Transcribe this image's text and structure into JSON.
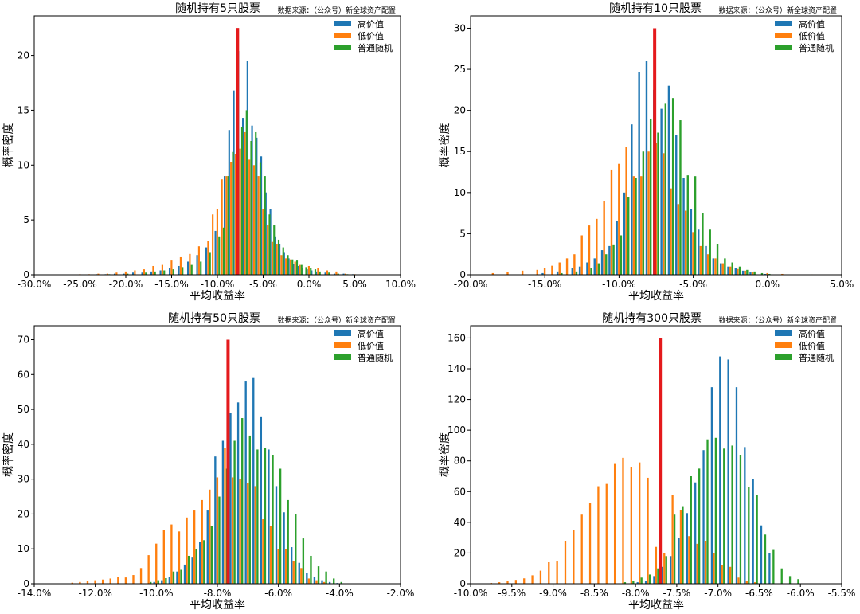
{
  "colors": {
    "high_value": "#1f77b4",
    "low_value": "#ff7f0e",
    "random": "#2ca02c",
    "marker": "#e41a1c"
  },
  "chart_data": [
    {
      "type": "bar",
      "title": "随机持有5只股票",
      "subtitle": "数据来源：（公众号）新全球资产配置",
      "xlabel": "平均收益率",
      "ylabel": "概率密度",
      "xlim": [
        -30,
        10
      ],
      "ylim": [
        0,
        23.6
      ],
      "x_ticks": [
        -30,
        -25,
        -20,
        -15,
        -10,
        -5,
        0,
        5,
        10
      ],
      "x_tick_labels": [
        "-30.0%",
        "-25.0%",
        "-20.0%",
        "-15.0%",
        "-10.0%",
        "-5.0%",
        "0.0%",
        "5.0%",
        "10.0%"
      ],
      "y_ticks": [
        0,
        5,
        10,
        15,
        20
      ],
      "legend": "top-right",
      "marker_x": -7.8,
      "marker_height": 22.5,
      "bin_width": 0.61,
      "series": [
        {
          "name": "高价值",
          "centers": [
            -23,
            -22,
            -21,
            -20,
            -19,
            -18,
            -17,
            -16,
            -15,
            -14,
            -13,
            -12,
            -11,
            -10,
            -9,
            -8.5,
            -8,
            -7.5,
            -7,
            -6.5,
            -6,
            -5.5,
            -5,
            -4.5,
            -4,
            -3.5,
            -3,
            -2.5,
            -2,
            -1.5,
            -1,
            -0.5,
            0,
            0.5,
            1,
            2,
            3,
            4,
            5
          ],
          "values": [
            0.05,
            0.05,
            0.1,
            0.1,
            0.2,
            0.2,
            0.3,
            0.4,
            0.6,
            0.8,
            1.2,
            1.8,
            2.5,
            4.0,
            9.0,
            13.2,
            16.8,
            20.4,
            14.3,
            19.5,
            13.6,
            12.5,
            10.8,
            7.5,
            6.0,
            3.5,
            2.8,
            2.0,
            1.5,
            1.0,
            0.8,
            0.6,
            0.5,
            0.4,
            0.3,
            0.2,
            0.1,
            0.1,
            0.05
          ]
        },
        {
          "name": "低价值",
          "centers": [
            -25,
            -24,
            -23,
            -22,
            -21,
            -20,
            -19,
            -18,
            -17,
            -16,
            -15,
            -14,
            -13,
            -12,
            -11,
            -10.5,
            -10,
            -9.5,
            -9,
            -8.5,
            -8,
            -7.5,
            -7,
            -6.5,
            -6,
            -5.5,
            -5,
            -4.5,
            -4,
            -3.5,
            -3,
            -2.5,
            -2,
            -1.5,
            -1,
            0,
            1,
            2,
            3,
            4,
            5
          ],
          "values": [
            0.05,
            0.05,
            0.1,
            0.1,
            0.2,
            0.3,
            0.4,
            0.5,
            0.8,
            0.9,
            1.3,
            1.6,
            1.9,
            2.6,
            3.1,
            5.5,
            6.0,
            8.7,
            9.0,
            10.3,
            11.0,
            11.5,
            13.0,
            10.5,
            10.0,
            9.0,
            6.0,
            4.5,
            3.0,
            2.8,
            1.8,
            1.5,
            1.4,
            1.2,
            0.9,
            0.8,
            0.6,
            0.4,
            0.3,
            0.1,
            0.05
          ]
        },
        {
          "name": "普通随机",
          "centers": [
            -22,
            -20,
            -18,
            -17,
            -16,
            -15,
            -14,
            -13,
            -12,
            -11,
            -10,
            -9.5,
            -9,
            -8.5,
            -8,
            -7.5,
            -7,
            -6.5,
            -6,
            -5.5,
            -5,
            -4.5,
            -4,
            -3.5,
            -3,
            -2.5,
            -2,
            -1.5,
            -1,
            -0.5,
            0,
            0.5,
            1,
            2,
            3,
            4
          ],
          "values": [
            0.05,
            0.1,
            0.2,
            0.3,
            0.4,
            0.5,
            0.7,
            0.9,
            1.2,
            2.0,
            3.5,
            4.3,
            9.0,
            11.2,
            12.2,
            13.5,
            15.0,
            12.2,
            13.0,
            10.2,
            9.0,
            5.5,
            4.5,
            3.2,
            2.5,
            1.8,
            1.4,
            1.3,
            0.9,
            0.7,
            0.6,
            0.5,
            0.3,
            0.2,
            0.1,
            0.05
          ]
        }
      ]
    },
    {
      "type": "bar",
      "title": "随机持有10只股票",
      "subtitle": "数据来源：（公众号）新全球资产配置",
      "xlabel": "平均收益率",
      "ylabel": "概率密度",
      "xlim": [
        -20,
        5
      ],
      "ylim": [
        0,
        31.5
      ],
      "x_ticks": [
        -20,
        -15,
        -10,
        -5,
        0,
        5
      ],
      "x_tick_labels": [
        "-20.0%",
        "-15.0%",
        "-10.0%",
        "-5.0%",
        "0.0%",
        "5.0%"
      ],
      "y_ticks": [
        0,
        5,
        10,
        15,
        20,
        25,
        30
      ],
      "legend": "top-right",
      "marker_x": -7.6,
      "marker_height": 30,
      "bin_width": 0.42,
      "series": [
        {
          "name": "高价值",
          "centers": [
            -15,
            -14,
            -13,
            -12.5,
            -12,
            -11.5,
            -11,
            -10.5,
            -10,
            -9.5,
            -9,
            -8.5,
            -8,
            -7.5,
            -7,
            -6.5,
            -6,
            -5.5,
            -5,
            -4.5,
            -4,
            -3.5,
            -3,
            -2.5,
            -2,
            -1.5,
            -1,
            0
          ],
          "values": [
            0.2,
            0.4,
            0.8,
            1.0,
            1.5,
            2.0,
            3.0,
            3.5,
            6.5,
            10.0,
            18.3,
            24.7,
            26.0,
            22.5,
            20.2,
            23.0,
            17.0,
            11.8,
            8.0,
            5.5,
            3.5,
            2.0,
            1.4,
            1.0,
            0.8,
            0.5,
            0.3,
            0.1
          ]
        },
        {
          "name": "低价值",
          "centers": [
            -18.5,
            -17.5,
            -16.5,
            -15.5,
            -15,
            -14.5,
            -14,
            -13.5,
            -13,
            -12.5,
            -12,
            -11.5,
            -11,
            -10.5,
            -10,
            -9.5,
            -9,
            -8.5,
            -8,
            -7.5,
            -7,
            -6.5,
            -6,
            -5.5,
            -5,
            -4.5,
            -4,
            -3.5,
            -3,
            -2.5,
            -2,
            -1.5,
            -1,
            0,
            1,
            3
          ],
          "values": [
            0.2,
            0.3,
            0.5,
            0.6,
            0.8,
            1.1,
            1.5,
            2.0,
            2.5,
            4.8,
            6.0,
            6.8,
            9.0,
            12.8,
            13.5,
            15.6,
            12.0,
            12.0,
            15.0,
            16.0,
            14.8,
            10.5,
            8.6,
            7.8,
            5.2,
            3.5,
            2.5,
            2.0,
            1.4,
            1.0,
            0.7,
            0.5,
            0.3,
            0.2,
            0.1,
            0.05
          ]
        },
        {
          "name": "普通随机",
          "centers": [
            -14,
            -13,
            -12,
            -11.5,
            -11,
            -10.5,
            -10,
            -9.5,
            -9,
            -8.5,
            -8,
            -7.5,
            -7,
            -6.5,
            -6,
            -5.5,
            -5,
            -4.5,
            -4,
            -3.5,
            -3,
            -2.5,
            -2,
            -1.5,
            -1,
            -0.5,
            0
          ],
          "values": [
            0.2,
            0.4,
            0.8,
            1.4,
            2.5,
            3.6,
            4.8,
            9.4,
            11.8,
            15.0,
            19.0,
            17.3,
            20.9,
            21.5,
            18.8,
            12.1,
            12.0,
            7.5,
            5.5,
            3.7,
            2.0,
            1.5,
            1.0,
            0.6,
            0.4,
            0.2,
            0.1
          ]
        }
      ]
    },
    {
      "type": "bar",
      "title": "随机持有50只股票",
      "subtitle": "数据来源：（公众号）新全球资产配置",
      "xlabel": "平均收益率",
      "ylabel": "概率密度",
      "xlim": [
        -14,
        -2
      ],
      "ylim": [
        0,
        74
      ],
      "x_ticks": [
        -14,
        -12,
        -10,
        -8,
        -6,
        -4,
        -2
      ],
      "x_tick_labels": [
        "-14.0%",
        "-12.0%",
        "-10.0%",
        "-8.0%",
        "-6.0%",
        "-4.0%",
        "-2.0%"
      ],
      "y_ticks": [
        0,
        10,
        20,
        30,
        40,
        50,
        60,
        70
      ],
      "legend": "top-right",
      "marker_x": -7.65,
      "marker_height": 70,
      "bin_width": 0.2,
      "series": [
        {
          "name": "高价值",
          "centers": [
            -10,
            -9.75,
            -9.5,
            -9.25,
            -9,
            -8.75,
            -8.5,
            -8.25,
            -8,
            -7.75,
            -7.5,
            -7.25,
            -7,
            -6.75,
            -6.5,
            -6.25,
            -6,
            -5.75,
            -5.5,
            -5.25,
            -5,
            -4.75,
            -4.5,
            -4.25,
            -4
          ],
          "values": [
            0.5,
            1.0,
            2.0,
            3.5,
            5.5,
            7.5,
            12.0,
            21.0,
            36.5,
            41.0,
            49.0,
            52.0,
            58.0,
            59.0,
            48.0,
            38.5,
            28.0,
            20.5,
            10.5,
            6.0,
            3.0,
            2.0,
            1.0,
            0.5,
            0.2
          ]
        },
        {
          "name": "低价值",
          "centers": [
            -12.75,
            -12.5,
            -12.25,
            -12,
            -11.75,
            -11.5,
            -11.25,
            -11,
            -10.75,
            -10.5,
            -10.25,
            -10,
            -9.75,
            -9.5,
            -9.25,
            -9,
            -8.75,
            -8.5,
            -8.25,
            -8,
            -7.75,
            -7.5,
            -7.25,
            -7,
            -6.75,
            -6.5,
            -6.25,
            -6,
            -5.75,
            -5.5,
            -5.25,
            -5,
            -4.75,
            -4.5
          ],
          "values": [
            0.3,
            0.5,
            0.8,
            1.0,
            1.2,
            1.5,
            2.0,
            1.8,
            2.5,
            4.5,
            8.2,
            11.5,
            15.5,
            17.0,
            15.0,
            19.0,
            21.0,
            24.0,
            27.0,
            30.5,
            39.0,
            30.5,
            30.0,
            29.0,
            28.0,
            18.5,
            16.5,
            10.0,
            10.0,
            6.5,
            4.5,
            1.5,
            1.0,
            0.5
          ]
        },
        {
          "name": "普通随机",
          "centers": [
            -10.25,
            -10,
            -9.75,
            -9.5,
            -9.25,
            -9,
            -8.75,
            -8.5,
            -8.25,
            -8,
            -7.75,
            -7.5,
            -7.25,
            -7,
            -6.75,
            -6.5,
            -6.25,
            -6,
            -5.75,
            -5.5,
            -5.25,
            -5,
            -4.75,
            -4.5,
            -4.25,
            -4
          ],
          "values": [
            0.5,
            1.0,
            1.6,
            3.5,
            4.0,
            8.0,
            10.0,
            12.5,
            16.5,
            25.0,
            33.0,
            41.0,
            47.5,
            42.5,
            38.5,
            39.0,
            37.0,
            33.0,
            24.0,
            20.0,
            13.0,
            8.0,
            5.0,
            3.5,
            1.5,
            0.5
          ]
        }
      ]
    },
    {
      "type": "bar",
      "title": "随机持有300只股票",
      "subtitle": "数据来源：（公众号）新全球资产配置",
      "xlabel": "平均收益率",
      "ylabel": "概率密度",
      "xlim": [
        -10,
        -5.5
      ],
      "ylim": [
        0,
        168
      ],
      "x_ticks": [
        -10,
        -9.5,
        -9,
        -8.5,
        -8,
        -7.5,
        -7,
        -6.5,
        -6,
        -5.5
      ],
      "x_tick_labels": [
        "-10.0%",
        "-9.5%",
        "-9.0%",
        "-8.5%",
        "-8.0%",
        "-7.5%",
        "-7.0%",
        "-6.5%",
        "-6.0%",
        "-5.5%"
      ],
      "y_ticks": [
        0,
        20,
        40,
        60,
        80,
        100,
        120,
        140,
        160
      ],
      "legend": "top-right",
      "marker_x": -7.7,
      "marker_height": 160,
      "bin_width": 0.072,
      "series": [
        {
          "name": "高价值",
          "centers": [
            -7.95,
            -7.85,
            -7.75,
            -7.65,
            -7.55,
            -7.45,
            -7.35,
            -7.25,
            -7.15,
            -7.05,
            -6.95,
            -6.85,
            -6.75,
            -6.65,
            -6.55,
            -6.45,
            -6.35
          ],
          "values": [
            1.0,
            2.0,
            5.0,
            11.0,
            18.0,
            30.0,
            46.0,
            66.0,
            87.0,
            128.0,
            148.0,
            146.0,
            128.0,
            89.0,
            68.0,
            38.0,
            20.0
          ]
        },
        {
          "name": "低价值",
          "centers": [
            -9.75,
            -9.65,
            -9.55,
            -9.45,
            -9.35,
            -9.25,
            -9.15,
            -9.05,
            -8.95,
            -8.85,
            -8.75,
            -8.65,
            -8.55,
            -8.45,
            -8.35,
            -8.25,
            -8.15,
            -8.05,
            -7.95,
            -7.85,
            -7.75,
            -7.65,
            -7.55,
            -7.45,
            -7.35,
            -7.25,
            -7.15,
            -7.05,
            -6.95,
            -6.85,
            -6.75,
            -6.65,
            -6.55
          ],
          "values": [
            0.5,
            1.0,
            2.0,
            2.5,
            3.5,
            5.5,
            8.5,
            14.0,
            14.5,
            28.0,
            35.0,
            45.0,
            52.5,
            63.5,
            65.0,
            78.0,
            82.0,
            76.0,
            79.0,
            69.0,
            24.0,
            20.0,
            58.0,
            48.0,
            31.0,
            26.0,
            28.0,
            20.0,
            12.0,
            11.0,
            4.0,
            2.0,
            1.0
          ]
        },
        {
          "name": "普通随机",
          "centers": [
            -8.15,
            -8.05,
            -7.95,
            -7.85,
            -7.75,
            -7.65,
            -7.55,
            -7.45,
            -7.35,
            -7.25,
            -7.15,
            -7.05,
            -6.95,
            -6.85,
            -6.75,
            -6.65,
            -6.55,
            -6.45,
            -6.35,
            -6.25,
            -6.15,
            -6.05
          ],
          "values": [
            1.0,
            2.0,
            4.0,
            6.0,
            10.0,
            18.0,
            45.0,
            50.0,
            70.0,
            75.0,
            94.0,
            95.0,
            88.0,
            90.0,
            84.0,
            63.0,
            58.0,
            32.0,
            22.0,
            10.0,
            5.0,
            3.0
          ]
        }
      ]
    }
  ]
}
